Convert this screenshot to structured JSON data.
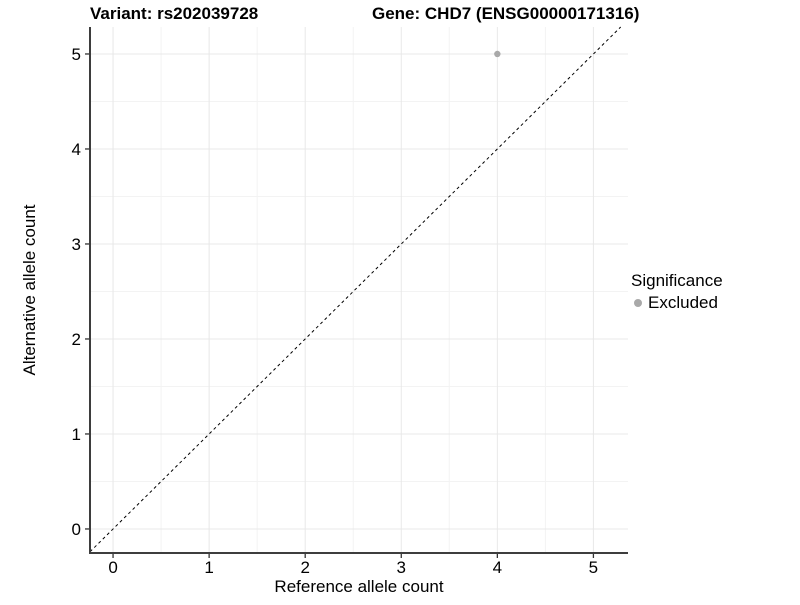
{
  "titles": {
    "variant": "Variant: rs202039728",
    "gene": "Gene: CHD7 (ENSG00000171316)"
  },
  "legend": {
    "title": "Significance",
    "items": [
      {
        "label": "Excluded",
        "color": "#a9a9a9"
      }
    ],
    "position": "right"
  },
  "colors": {
    "background": "#ffffff",
    "grid_major": "#e8e8e8",
    "grid_minor": "#f3f3f3",
    "axis_line": "#3d3d3d",
    "tick_mark": "#333333",
    "tick_label": "#000000",
    "reference_line": "#000000",
    "point": "#a9a9a9"
  },
  "chart_data": {
    "type": "scatter",
    "title_left": "Variant: rs202039728",
    "title_right": "Gene: CHD7 (ENSG00000171316)",
    "xlabel": "Reference allele count",
    "ylabel": "Alternative allele count",
    "xlim": [
      -0.24,
      5.36
    ],
    "ylim": [
      -0.253,
      5.284
    ],
    "xticks": [
      0,
      1,
      2,
      3,
      4,
      5
    ],
    "yticks": [
      0,
      1,
      2,
      3,
      4,
      5
    ],
    "minor_step": 0.5,
    "grid": "major+minor",
    "legend_position": "right",
    "series": [
      {
        "name": "Excluded",
        "color": "#a9a9a9",
        "points": [
          {
            "x": 4,
            "y": 5
          }
        ]
      }
    ],
    "reference_line": {
      "type": "identity y=x",
      "style": "dashed",
      "color": "#000000"
    }
  }
}
